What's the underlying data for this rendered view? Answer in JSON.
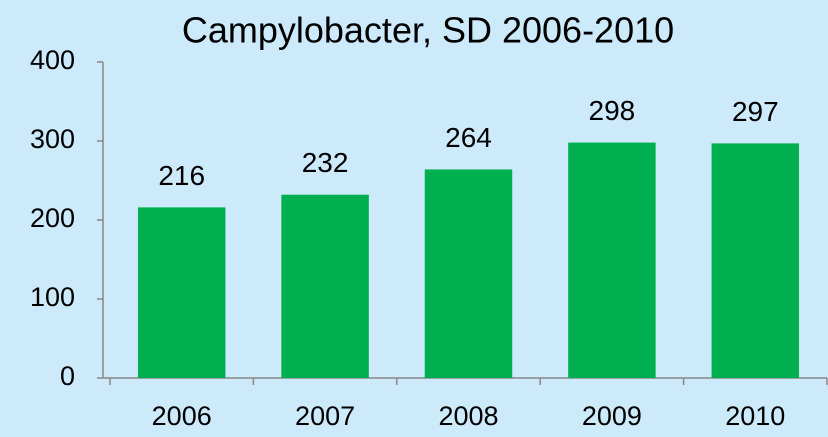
{
  "chart_data": {
    "type": "bar",
    "title": "Campylobacter, SD 2006-2010",
    "categories": [
      "2006",
      "2007",
      "2008",
      "2009",
      "2010"
    ],
    "values": [
      216,
      232,
      264,
      298,
      297
    ],
    "color": "#00b050",
    "ylim": [
      0,
      400
    ],
    "yticks": [
      0,
      100,
      200,
      300,
      400
    ],
    "grid": false
  }
}
